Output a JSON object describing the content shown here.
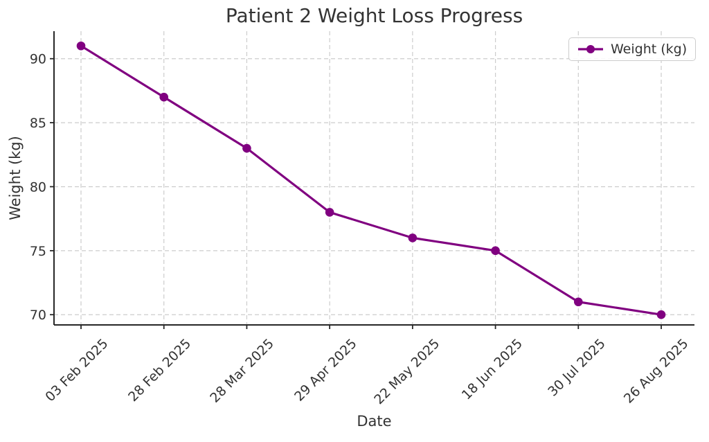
{
  "chart_data": {
    "type": "line",
    "title": "Patient 2 Weight Loss Progress",
    "xlabel": "Date",
    "ylabel": "Weight (kg)",
    "categories": [
      "03 Feb 2025",
      "28 Feb 2025",
      "28 Mar 2025",
      "29 Apr 2025",
      "22 May 2025",
      "18 Jun 2025",
      "30 Jul 2025",
      "26 Aug 2025"
    ],
    "series": [
      {
        "name": "Weight (kg)",
        "values": [
          91,
          87,
          83,
          78,
          76,
          75,
          71,
          70
        ],
        "color": "#800080",
        "marker": "circle"
      }
    ],
    "y_ticks": [
      70,
      75,
      80,
      85,
      90
    ],
    "ylim": [
      69.2,
      92.15
    ],
    "x_tick_rotation": 45,
    "grid": {
      "visible": true,
      "style": "dashed",
      "color": "#cccccc"
    },
    "legend": {
      "position": "upper-right",
      "entries": [
        "Weight (kg)"
      ]
    },
    "spine_color": "#262626",
    "text_color": "#333333",
    "background_color": "#ffffff"
  }
}
